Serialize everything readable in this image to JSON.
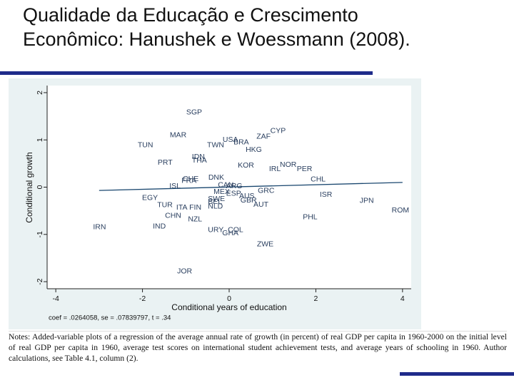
{
  "slide": {
    "title": [
      "Qualidade da Educação e Crescimento",
      "Econômico: Hanushek e Woessmann (2008)."
    ],
    "notes": "Notes: Added-variable plots of a regression of the average annual rate of growth (in percent) of real GDP per capita in 1960-2000 on the initial level of real GDP per capita in 1960, average test scores on international student achievement tests, and average years of schooling in 1960. Author calculations, see Table 4.1, column (2)."
  },
  "chart_data": {
    "type": "scatter",
    "xlabel": "Conditional years of education",
    "ylabel": "Conditional growth",
    "annotation": "coef = .0264058, se = .07839797, t = .34",
    "xlim": [
      -4.2,
      4.2
    ],
    "ylim": [
      -2.15,
      2.15
    ],
    "xticks": [
      -4,
      -2,
      0,
      2,
      4
    ],
    "yticks": [
      -2,
      -1,
      0,
      1,
      2
    ],
    "color": "#2a3f5f",
    "labels": [
      "SGP",
      "MAR",
      "CYP",
      "ZAF",
      "USA",
      "BRA",
      "TWN",
      "TUN",
      "HKG",
      "IDN",
      "THA",
      "PRT",
      "KOR",
      "NOR",
      "IRL",
      "PER",
      "CHL",
      "DNK",
      "CHE",
      "FRA",
      "ISL",
      "CAN",
      "ARG",
      "MEX",
      "GRC",
      "ESP",
      "AUS",
      "ISR",
      "EGY",
      "SWE",
      "BEL",
      "GBR",
      "JPN",
      "AUT",
      "TUR",
      "NLD",
      "ITA",
      "FIN",
      "ROM",
      "CHN",
      "PHL",
      "NZL",
      "IRN",
      "IND",
      "URY",
      "COL",
      "GHA",
      "ZWE",
      "JOR"
    ],
    "x": [
      -0.99,
      -1.37,
      0.95,
      0.63,
      -0.15,
      0.1,
      -0.51,
      -2.11,
      0.38,
      -0.86,
      -0.86,
      -1.65,
      0.2,
      1.17,
      0.92,
      1.56,
      1.88,
      -0.48,
      -1.07,
      -1.1,
      -1.38,
      -0.26,
      -0.07,
      -0.36,
      0.66,
      -0.07,
      0.23,
      2.09,
      -2.01,
      -0.49,
      -0.49,
      0.26,
      3.01,
      0.56,
      -1.66,
      -0.49,
      -1.22,
      -0.92,
      3.75,
      -1.48,
      1.7,
      -0.95,
      -3.14,
      -1.76,
      -0.49,
      -0.03,
      -0.16,
      0.64,
      -1.2
    ],
    "values": [
      1.58,
      1.1,
      1.19,
      1.07,
      1.0,
      0.95,
      0.89,
      0.89,
      0.79,
      0.64,
      0.56,
      0.52,
      0.46,
      0.47,
      0.38,
      0.38,
      0.16,
      0.2,
      0.17,
      0.13,
      0.02,
      0.04,
      0.02,
      -0.1,
      -0.08,
      -0.14,
      -0.19,
      -0.16,
      -0.23,
      -0.25,
      -0.31,
      -0.28,
      -0.29,
      -0.37,
      -0.38,
      -0.41,
      -0.43,
      -0.43,
      -0.49,
      -0.61,
      -0.64,
      -0.68,
      -0.85,
      -0.83,
      -0.91,
      -0.91,
      -0.98,
      -1.21,
      -1.78
    ],
    "fit": {
      "color": "#1a476f",
      "x": [
        -3,
        4
      ],
      "values": [
        -0.07,
        0.1
      ]
    }
  }
}
